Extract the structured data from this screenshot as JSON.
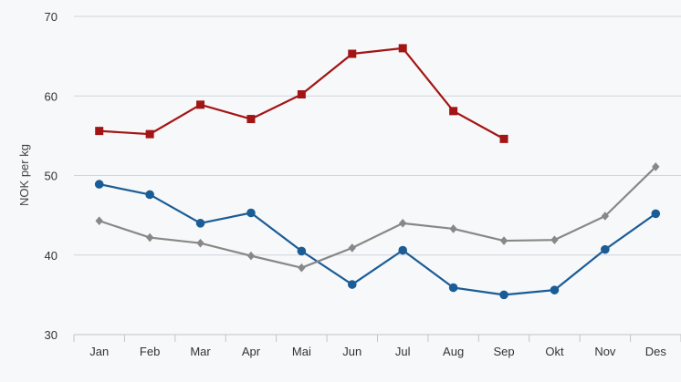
{
  "chart_data": {
    "type": "line",
    "title": "",
    "xlabel": "",
    "ylabel": "NOK per kg",
    "ylim": [
      30,
      70
    ],
    "yticks": [
      30,
      40,
      50,
      60,
      70
    ],
    "grid": true,
    "categories": [
      "Jan",
      "Feb",
      "Mar",
      "Apr",
      "Mai",
      "Jun",
      "Jul",
      "Aug",
      "Sep",
      "Okt",
      "Nov",
      "Des"
    ],
    "series": [
      {
        "color": "#a31515",
        "marker": "square",
        "values": [
          55.6,
          55.2,
          58.9,
          57.1,
          60.2,
          65.3,
          66.0,
          58.1,
          54.6,
          null,
          null,
          null
        ]
      },
      {
        "color": "#1a5c96",
        "marker": "circle",
        "values": [
          48.9,
          47.6,
          44.0,
          45.3,
          40.5,
          36.3,
          40.6,
          35.9,
          35.0,
          35.6,
          40.7,
          45.2
        ]
      },
      {
        "color": "#888888",
        "marker": "diamond",
        "values": [
          44.3,
          42.2,
          41.5,
          39.9,
          38.4,
          40.9,
          44.0,
          43.3,
          41.8,
          41.9,
          44.9,
          51.1
        ]
      }
    ]
  }
}
